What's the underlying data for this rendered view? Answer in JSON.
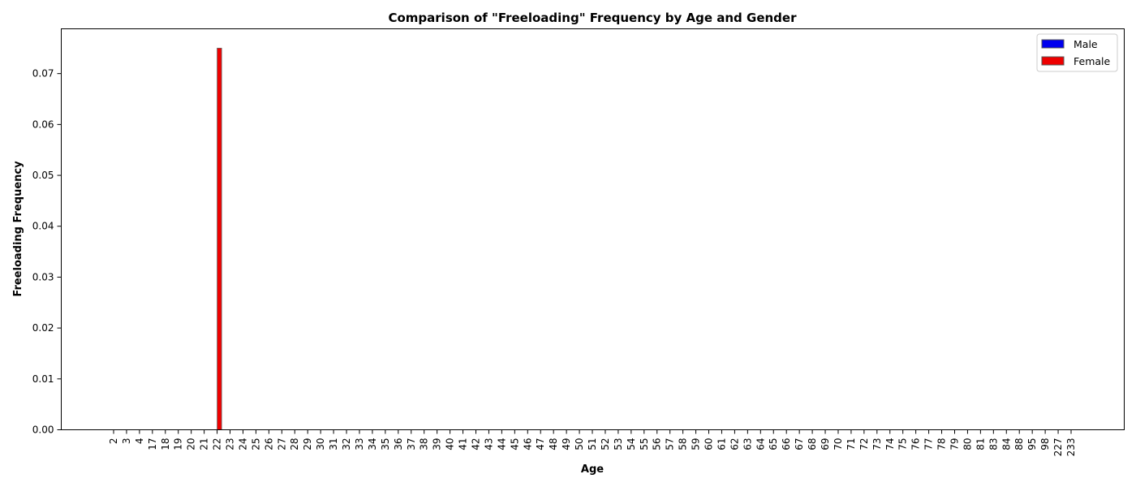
{
  "chart_data": {
    "type": "bar",
    "title": "Comparison of \"Freeloading\" Frequency by Age and Gender",
    "xlabel": "Age",
    "ylabel": "Freeloading Frequency",
    "categories": [
      "2",
      "3",
      "4",
      "17",
      "18",
      "19",
      "20",
      "21",
      "22",
      "23",
      "24",
      "25",
      "26",
      "27",
      "28",
      "29",
      "30",
      "31",
      "32",
      "33",
      "34",
      "35",
      "36",
      "37",
      "38",
      "39",
      "40",
      "41",
      "42",
      "43",
      "44",
      "45",
      "46",
      "47",
      "48",
      "49",
      "50",
      "51",
      "52",
      "53",
      "54",
      "55",
      "56",
      "57",
      "58",
      "59",
      "60",
      "61",
      "62",
      "63",
      "64",
      "65",
      "66",
      "67",
      "68",
      "69",
      "70",
      "71",
      "72",
      "73",
      "74",
      "75",
      "76",
      "77",
      "78",
      "79",
      "80",
      "81",
      "83",
      "84",
      "88",
      "95",
      "98",
      "227",
      "233"
    ],
    "series": [
      {
        "name": "Male",
        "color": "#0000ee",
        "values": [
          0,
          0,
          0,
          0,
          0,
          0,
          0,
          0,
          0,
          0,
          0,
          0,
          0,
          0,
          0,
          0,
          0,
          0,
          0,
          0,
          0,
          0,
          0,
          0,
          0,
          0,
          0,
          0,
          0,
          0,
          0,
          0,
          0,
          0,
          0,
          0,
          0,
          0,
          0,
          0,
          0,
          0,
          0,
          0,
          0,
          0,
          0,
          0,
          0,
          0,
          0,
          0,
          0,
          0,
          0,
          0,
          0,
          0,
          0,
          0,
          0,
          0,
          0,
          0,
          0,
          0,
          0,
          0,
          0,
          0,
          0,
          0,
          0,
          0,
          0
        ]
      },
      {
        "name": "Female",
        "color": "#ee0000",
        "values": [
          0,
          0,
          0,
          0,
          0,
          0,
          0,
          0,
          0.075,
          0,
          0,
          0,
          0,
          0,
          0,
          0,
          0,
          0,
          0,
          0,
          0,
          0,
          0,
          0,
          0,
          0,
          0,
          0,
          0,
          0,
          0,
          0,
          0,
          0,
          0,
          0,
          0,
          0,
          0,
          0,
          0,
          0,
          0,
          0,
          0,
          0,
          0,
          0,
          0,
          0,
          0,
          0,
          0,
          0,
          0,
          0,
          0,
          0,
          0,
          0,
          0,
          0,
          0,
          0,
          0,
          0,
          0,
          0,
          0,
          0,
          0,
          0,
          0,
          0,
          0
        ]
      }
    ],
    "ylim": [
      0,
      0.0788
    ],
    "yticks": [
      0.0,
      0.01,
      0.02,
      0.03,
      0.04,
      0.05,
      0.06,
      0.07
    ],
    "ytick_labels": [
      "0.00",
      "0.01",
      "0.02",
      "0.03",
      "0.04",
      "0.05",
      "0.06",
      "0.07"
    ],
    "legend_position": "top-right",
    "grid": false
  }
}
